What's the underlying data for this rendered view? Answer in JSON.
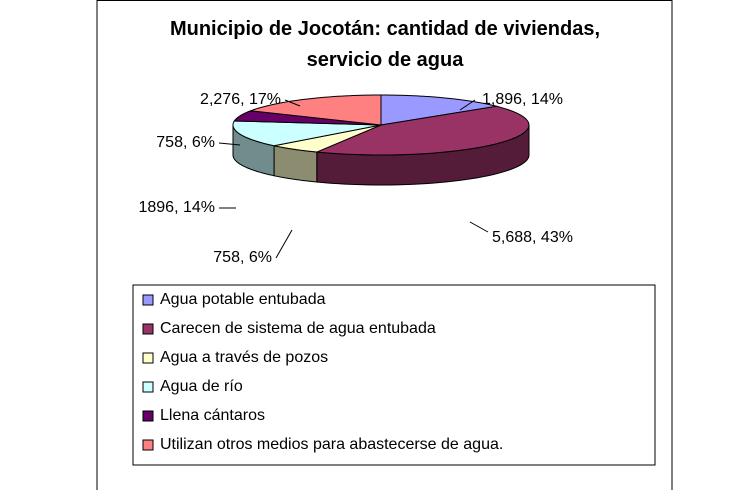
{
  "chart_data": {
    "type": "pie",
    "title": "Municipio de Jocotán: cantidad de viviendas, servicio de agua",
    "categories": [
      "Agua potable entubada",
      "Carecen de sistema de agua entubada",
      "Agua a través de pozos",
      "Agua de río",
      "Llena cántaros",
      "Utilizan otros medios para abastecerse de agua."
    ],
    "values": [
      1896,
      5688,
      758,
      1896,
      758,
      2276
    ],
    "value_labels": [
      "1,896, 14%",
      "5,688, 43%",
      "758, 6%",
      "1896, 14%",
      "758, 6%",
      "2,276, 17%"
    ],
    "colors": [
      "#9999ff",
      "#993366",
      "#ffffcc",
      "#ccffff",
      "#660066",
      "#ff8080"
    ],
    "legend": "bottom"
  }
}
